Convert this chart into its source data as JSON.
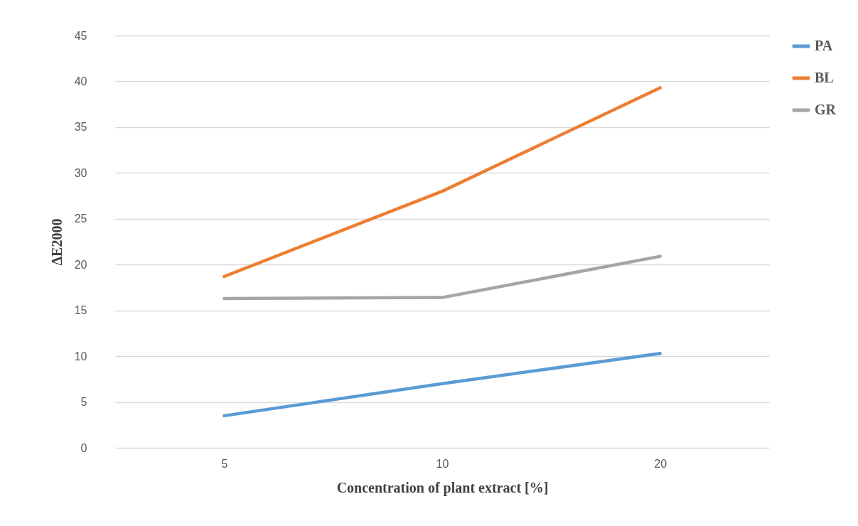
{
  "chart_data": {
    "type": "line",
    "xlabel": "Concentration of plant extract [%]",
    "ylabel": "ΔE2000",
    "categories": [
      "5",
      "10",
      "20"
    ],
    "series": [
      {
        "name": "PA",
        "color": "#5b9bd5",
        "values": [
          3.5,
          7.0,
          10.3
        ]
      },
      {
        "name": "BL",
        "color": "#ed7d31",
        "values": [
          18.7,
          28.0,
          39.3
        ]
      },
      {
        "name": "GR",
        "color": "#a5a5a5",
        "values": [
          16.3,
          16.4,
          20.9
        ]
      }
    ],
    "ylim": [
      0,
      45
    ],
    "yticks": [
      0,
      5,
      10,
      15,
      20,
      25,
      30,
      35,
      40,
      45
    ],
    "grid": "y",
    "legend": "right"
  }
}
